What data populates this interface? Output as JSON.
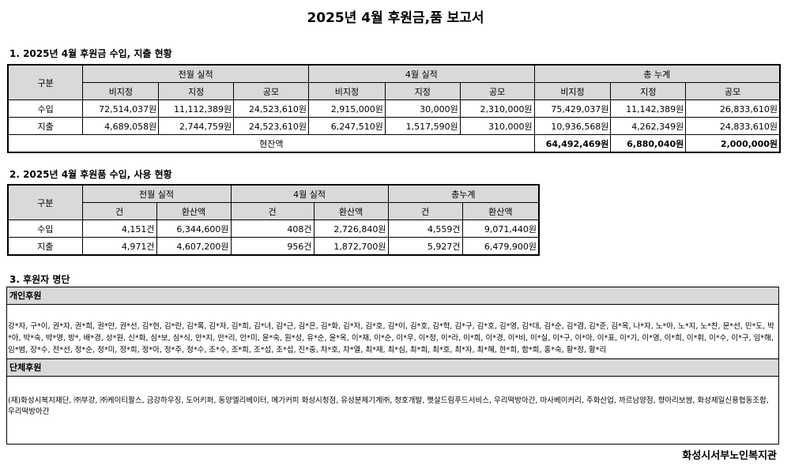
{
  "title": "2025년 4월 후원금,품 보고서",
  "section1": {
    "heading": "1. 2025년 4월 후원금 수입, 지출 현황",
    "col_gubun": "구분",
    "groups": [
      "전월 실적",
      "4월 실적",
      "총 누계"
    ],
    "subheaders": [
      "비지정",
      "지정",
      "공모",
      "비지정",
      "지정",
      "공모",
      "비지정",
      "지정",
      "공모"
    ],
    "rows": [
      {
        "label": "수입",
        "values": [
          "72,514,037원",
          "11,112,389원",
          "24,523,610원",
          "2,915,000원",
          "30,000원",
          "2,310,000원",
          "75,429,037원",
          "11,142,389원",
          "26,833,610원"
        ]
      },
      {
        "label": "지출",
        "values": [
          "4,689,058원",
          "2,744,759원",
          "24,523,610원",
          "6,247,510원",
          "1,517,590원",
          "310,000원",
          "10,936,568원",
          "4,262,349원",
          "24,833,610원"
        ]
      }
    ],
    "balance_label": "현잔액",
    "balance_values": [
      "64,492,469원",
      "6,880,040원",
      "2,000,000원"
    ]
  },
  "section2": {
    "heading": "2. 2025년 4월 후원품 수입, 사용 현황",
    "col_gubun": "구분",
    "groups": [
      "전월 실적",
      "4월 실적",
      "총누계"
    ],
    "subheaders": [
      "건",
      "환산액",
      "건",
      "환산액",
      "건",
      "환산액"
    ],
    "rows": [
      {
        "label": "수입",
        "values": [
          "4,151건",
          "6,344,600원",
          "408건",
          "2,726,840원",
          "4,559건",
          "9,071,440원"
        ]
      },
      {
        "label": "지출",
        "values": [
          "4,971건",
          "4,607,200원",
          "956건",
          "1,872,700원",
          "5,927건",
          "6,479,900원"
        ]
      }
    ]
  },
  "section3": {
    "heading": "3. 후원자 명단",
    "individual_label": "개인후원",
    "individual_names": "강*자, 구*이, 권*자, 권*희, 권*안, 권*선, 김*현, 김*란, 김*록, 김*자, 김*희, 김*녀, 김*근, 김*은, 김*화, 김*자, 김*호, 김*이, 김*호, 김*학, 김*구, 김*호, 김*영, 김*대, 김*순, 김*겸, 김*준, 김*옥, 나*자, 노*아, 노*지, 노*찬, 문*선, 민*도, 박*아, 박*숙, 박*영, 방*, 배*경, 성*원, 신*화, 심*보, 심*식, 안*지, 안*리, 안*미, 윤*숙, 원*성, 유*순, 윤*옥, 이*재, 이*순, 이*우, 이*정, 이*라, 이*희, 이*경, 이*비, 이*실, 이*구, 이*아, 이*표, 이*기, 이*영, 이*희, 이*휘, 이*수, 이*구, 임*해, 임*범, 장*수, 전*선, 정*순, 정*미, 정*희, 정*아, 정*주, 정*수, 조*수, 조*희, 조*섭, 조*섭, 진*중, 차*호, 차*열, 최*재, 최*심, 최*희, 최*호, 최*자, 최*혜, 한*희, 함*희, 홍*숙, 황*정, 황*리",
    "group_label": "단체후원",
    "group_names": "(재)화성시복지재단, ㈜부강, ㈜케이티팔스, 금강하우징, 도어키퍼, 동양엘리베이터, 메가커피 화성시청점, 유성분체기계㈜, 청호개발, 햇살드림푸드서비스, 우리떡방아간, 마사베이커리, 주화산업, 까르남양점, 향아리보쌈, 화성제일신용협동조합, 우리떡방아간"
  },
  "footer": "화성시서부노인복지관"
}
